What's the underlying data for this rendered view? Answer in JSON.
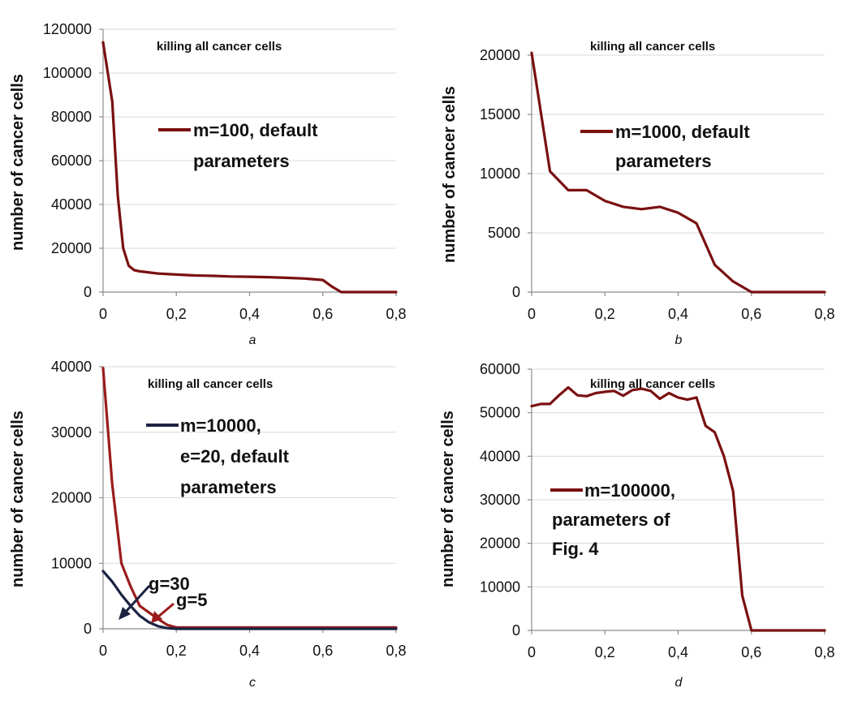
{
  "chart_data": [
    {
      "panel": "a",
      "type": "line",
      "title": "killing all cancer cells",
      "ylabel": "number of cancer cells",
      "xlabel": "",
      "xlim": [
        0,
        0.8
      ],
      "ylim": [
        0,
        120000
      ],
      "xticks": [
        "0",
        "0,2",
        "0,4",
        "0,6",
        "0,8"
      ],
      "yticks": [
        "0",
        "20000",
        "40000",
        "60000",
        "80000",
        "100000",
        "120000"
      ],
      "grid": true,
      "series": [
        {
          "name": "m=100, default parameters",
          "legend_lines": [
            "m=100, default",
            "parameters"
          ],
          "color": "#7a1010",
          "x": [
            0,
            0.025,
            0.04,
            0.055,
            0.07,
            0.085,
            0.1,
            0.15,
            0.2,
            0.25,
            0.3,
            0.35,
            0.4,
            0.45,
            0.5,
            0.55,
            0.6,
            0.625,
            0.65,
            0.7,
            0.75,
            0.8
          ],
          "y": [
            114000,
            87000,
            44000,
            20000,
            12000,
            10000,
            9500,
            8500,
            8000,
            7600,
            7400,
            7100,
            7000,
            6800,
            6500,
            6200,
            5500,
            2500,
            0,
            0,
            0,
            0
          ]
        }
      ]
    },
    {
      "panel": "b",
      "type": "line",
      "title": "killing all cancer cells",
      "ylabel": "number of cancer cells",
      "xlabel": "",
      "xlim": [
        0,
        0.8
      ],
      "ylim": [
        0,
        20000
      ],
      "xticks": [
        "0",
        "0,2",
        "0,4",
        "0,6",
        "0,8"
      ],
      "yticks": [
        "0",
        "5000",
        "10000",
        "15000",
        "20000"
      ],
      "grid": true,
      "series": [
        {
          "name": "m=1000, default parameters",
          "legend_lines": [
            "m=1000, default",
            "parameters"
          ],
          "color": "#7a1010",
          "x": [
            0,
            0.05,
            0.1,
            0.15,
            0.2,
            0.25,
            0.3,
            0.35,
            0.4,
            0.45,
            0.5,
            0.55,
            0.6,
            0.65,
            0.7,
            0.75,
            0.8
          ],
          "y": [
            20200,
            10200,
            8600,
            8600,
            7700,
            7200,
            7000,
            7200,
            6700,
            5800,
            2300,
            900,
            0,
            0,
            0,
            0,
            0
          ]
        }
      ]
    },
    {
      "panel": "c",
      "type": "line",
      "title": "killing all cancer cells",
      "ylabel": "number of cancer cells",
      "xlabel": "",
      "xlim": [
        0,
        0.8
      ],
      "ylim": [
        0,
        40000
      ],
      "xticks": [
        "0",
        "0,2",
        "0,4",
        "0,6",
        "0,8"
      ],
      "yticks": [
        "0",
        "10000",
        "20000",
        "30000",
        "40000"
      ],
      "grid": true,
      "legend_lines": [
        "m=10000,",
        "e=20, default",
        "parameters"
      ],
      "series": [
        {
          "name": "g=5",
          "color": "#9b1c1c",
          "x": [
            0,
            0.025,
            0.05,
            0.075,
            0.1,
            0.125,
            0.15,
            0.175,
            0.2,
            0.25,
            0.3,
            0.4,
            0.5,
            0.6,
            0.7,
            0.8
          ],
          "y": [
            39800,
            22000,
            10000,
            6500,
            3500,
            2500,
            1500,
            600,
            200,
            200,
            200,
            200,
            200,
            200,
            200,
            200
          ]
        },
        {
          "name": "g=30",
          "color": "#1a2342",
          "x": [
            0,
            0.025,
            0.05,
            0.075,
            0.1,
            0.125,
            0.15,
            0.175,
            0.2,
            0.25,
            0.3,
            0.4,
            0.5,
            0.6,
            0.7,
            0.8
          ],
          "y": [
            8800,
            7200,
            5200,
            3500,
            2000,
            1000,
            400,
            100,
            0,
            0,
            0,
            0,
            0,
            0,
            0,
            0
          ]
        }
      ]
    },
    {
      "panel": "d",
      "type": "line",
      "title": "killing all cancer cells",
      "ylabel": "number of cancer cells",
      "xlabel": "",
      "xlim": [
        0,
        0.8
      ],
      "ylim": [
        0,
        60000
      ],
      "xticks": [
        "0",
        "0,2",
        "0,4",
        "0,6",
        "0,8"
      ],
      "yticks": [
        "0",
        "10000",
        "20000",
        "30000",
        "40000",
        "50000",
        "60000"
      ],
      "grid": true,
      "series": [
        {
          "name": "m=100000, parameters of Fig. 4",
          "legend_lines": [
            "m=100000,",
            "parameters of",
            "Fig. 4"
          ],
          "color": "#7a1010",
          "x": [
            0,
            0.025,
            0.05,
            0.075,
            0.1,
            0.125,
            0.15,
            0.175,
            0.2,
            0.225,
            0.25,
            0.275,
            0.3,
            0.325,
            0.35,
            0.375,
            0.4,
            0.425,
            0.45,
            0.475,
            0.5,
            0.525,
            0.55,
            0.575,
            0.6,
            0.65,
            0.7,
            0.75,
            0.8
          ],
          "y": [
            51500,
            52000,
            52000,
            54000,
            55800,
            54000,
            53800,
            54500,
            54800,
            55000,
            53900,
            55200,
            55500,
            55000,
            53200,
            54500,
            53500,
            53000,
            53500,
            47000,
            45500,
            40000,
            32000,
            8000,
            0,
            0,
            0,
            0,
            0
          ]
        }
      ]
    }
  ]
}
